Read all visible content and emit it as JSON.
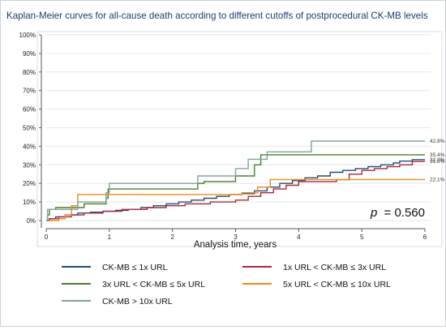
{
  "chart_data": {
    "type": "line",
    "step": true,
    "title": "Kaplan-Meier curves for all-cause death according to different cutoffs of postprocedural CK-MB levels",
    "xlabel": "Analysis time, years",
    "ylabel": "",
    "xlim": [
      0,
      6
    ],
    "ylim": [
      0,
      100
    ],
    "x_ticks": [
      "0",
      "1",
      "2",
      "3",
      "4",
      "5",
      "6"
    ],
    "y_ticks": [
      "0%",
      "10%",
      "20%",
      "30%",
      "40%",
      "50%",
      "60%",
      "70%",
      "80%",
      "90%",
      "100%"
    ],
    "grid": "horizontal",
    "legend_position": "bottom",
    "annotation": {
      "p_label": "p",
      "p_value": "= 0.560"
    },
    "series": [
      {
        "name": "CK-MB ≤ 1x URL",
        "color": "#1f4e79",
        "end_label": "32.8%",
        "points": [
          [
            0,
            0
          ],
          [
            0.05,
            1
          ],
          [
            0.15,
            2
          ],
          [
            0.3,
            3
          ],
          [
            0.5,
            4
          ],
          [
            0.7,
            4.5
          ],
          [
            0.9,
            5
          ],
          [
            1.1,
            5.5
          ],
          [
            1.3,
            6
          ],
          [
            1.5,
            7
          ],
          [
            1.7,
            8
          ],
          [
            1.9,
            9
          ],
          [
            2.1,
            10
          ],
          [
            2.3,
            11
          ],
          [
            2.5,
            12
          ],
          [
            2.7,
            13
          ],
          [
            2.9,
            14
          ],
          [
            3.1,
            14.5
          ],
          [
            3.3,
            16
          ],
          [
            3.5,
            18
          ],
          [
            3.7,
            20
          ],
          [
            3.9,
            21.5
          ],
          [
            4.1,
            23
          ],
          [
            4.3,
            24
          ],
          [
            4.5,
            26
          ],
          [
            4.7,
            27
          ],
          [
            4.9,
            28
          ],
          [
            5.1,
            29
          ],
          [
            5.3,
            30
          ],
          [
            5.5,
            31
          ],
          [
            5.6,
            32
          ],
          [
            5.8,
            32.8
          ],
          [
            6,
            32.8
          ]
        ]
      },
      {
        "name": "1x URL < CK-MB ≤ 3x URL",
        "color": "#a8283a",
        "end_label": "31.8%",
        "points": [
          [
            0,
            0
          ],
          [
            0.05,
            1
          ],
          [
            0.2,
            2
          ],
          [
            0.4,
            3
          ],
          [
            0.6,
            4
          ],
          [
            0.9,
            5
          ],
          [
            1.2,
            6
          ],
          [
            1.6,
            7
          ],
          [
            1.9,
            8
          ],
          [
            2.2,
            9
          ],
          [
            2.6,
            10
          ],
          [
            3.0,
            11
          ],
          [
            3.2,
            13
          ],
          [
            3.4,
            15
          ],
          [
            3.6,
            17
          ],
          [
            3.8,
            19
          ],
          [
            4.0,
            21
          ],
          [
            4.6,
            22
          ],
          [
            4.8,
            25
          ],
          [
            5.0,
            27
          ],
          [
            5.2,
            28
          ],
          [
            5.4,
            29
          ],
          [
            5.6,
            30
          ],
          [
            5.8,
            31.8
          ],
          [
            6,
            31.8
          ]
        ]
      },
      {
        "name": "3x URL < CK-MB ≤ 5x URL",
        "color": "#4a7d2c",
        "end_label": "35.4%",
        "points": [
          [
            0,
            0
          ],
          [
            0.02,
            3
          ],
          [
            0.05,
            6
          ],
          [
            0.15,
            7
          ],
          [
            0.6,
            9
          ],
          [
            0.95,
            12
          ],
          [
            0.98,
            17
          ],
          [
            2.4,
            20
          ],
          [
            2.5,
            21
          ],
          [
            3.0,
            24
          ],
          [
            3.3,
            30
          ],
          [
            3.4,
            35.4
          ],
          [
            6,
            35.4
          ]
        ]
      },
      {
        "name": "5x URL < CK-MB ≤ 10x URL",
        "color": "#ee8a1f",
        "end_label": "22.1%",
        "points": [
          [
            0,
            0
          ],
          [
            0.2,
            1
          ],
          [
            0.3,
            3
          ],
          [
            0.4,
            8
          ],
          [
            0.5,
            14
          ],
          [
            3.1,
            15
          ],
          [
            3.35,
            18
          ],
          [
            3.55,
            22.1
          ],
          [
            6,
            22.1
          ]
        ]
      },
      {
        "name": "CK-MB > 10x URL",
        "color": "#7fa59a",
        "end_label": "42.8%",
        "points": [
          [
            0,
            0
          ],
          [
            0.02,
            6
          ],
          [
            0.5,
            10
          ],
          [
            0.95,
            15
          ],
          [
            1.0,
            20
          ],
          [
            2.4,
            24
          ],
          [
            3.0,
            28
          ],
          [
            3.2,
            33
          ],
          [
            3.5,
            37
          ],
          [
            4.2,
            42.8
          ],
          [
            6,
            42.8
          ]
        ]
      }
    ]
  }
}
